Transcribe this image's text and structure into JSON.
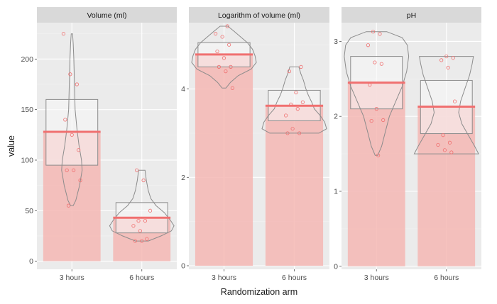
{
  "chart_data": {
    "type": "bar",
    "layout": "faceted-panels",
    "xlabel": "Randomization arm",
    "ylabel": "value",
    "categories": [
      "3 hours",
      "6 hours"
    ],
    "colors": {
      "panel_background": "#ebebeb",
      "strip_background": "#d9d9d9",
      "bar_fill": "#f4b7b4",
      "mean_line": "#f07070",
      "point": "#f07070",
      "outline": "#8c8c8c",
      "box_fill": "#f7f7f7"
    },
    "panels": [
      {
        "title": "Volume (ml)",
        "ylim": [
          -8,
          236
        ],
        "yticks": [
          0,
          50,
          100,
          150,
          200
        ],
        "groups": [
          {
            "category": "3 hours",
            "mean": 128,
            "box": [
              95,
              160
            ],
            "violin": [
              [
                55,
                0.02
              ],
              [
                60,
                0.06
              ],
              [
                75,
                0.12
              ],
              [
                90,
                0.16
              ],
              [
                100,
                0.15
              ],
              [
                115,
                0.11
              ],
              [
                130,
                0.08
              ],
              [
                150,
                0.05
              ],
              [
                175,
                0.04
              ],
              [
                200,
                0.03
              ],
              [
                215,
                0.02
              ],
              [
                225,
                0.01
              ]
            ],
            "points": [
              225,
              185,
              175,
              140,
              125,
              110,
              90,
              90,
              80,
              55
            ]
          },
          {
            "category": "6 hours",
            "mean": 43,
            "box": [
              28,
              58
            ],
            "violin": [
              [
                20,
                0.1
              ],
              [
                25,
                0.3
              ],
              [
                30,
                0.46
              ],
              [
                35,
                0.5
              ],
              [
                40,
                0.45
              ],
              [
                48,
                0.35
              ],
              [
                55,
                0.22
              ],
              [
                62,
                0.14
              ],
              [
                70,
                0.1
              ],
              [
                80,
                0.07
              ],
              [
                90,
                0.05
              ]
            ],
            "points": [
              90,
              80,
              50,
              40,
              40,
              35,
              30,
              22,
              20,
              20
            ]
          }
        ]
      },
      {
        "title": "Logarithm of volume (ml)",
        "ylim": [
          -0.08,
          5.5
        ],
        "yticks": [
          0,
          2,
          4
        ],
        "groups": [
          {
            "category": "3 hours",
            "mean": 4.78,
            "box": [
              4.5,
              5.05
            ],
            "violin": [
              [
                4.02,
                0.03
              ],
              [
                4.15,
                0.1
              ],
              [
                4.3,
                0.22
              ],
              [
                4.45,
                0.42
              ],
              [
                4.6,
                0.5
              ],
              [
                4.75,
                0.48
              ],
              [
                4.9,
                0.44
              ],
              [
                5.05,
                0.36
              ],
              [
                5.2,
                0.24
              ],
              [
                5.3,
                0.16
              ],
              [
                5.42,
                0.06
              ]
            ],
            "points": [
              5.42,
              5.25,
              5.18,
              5.0,
              4.85,
              4.7,
              4.5,
              4.5,
              4.4,
              4.02
            ]
          },
          {
            "category": "6 hours",
            "mean": 3.62,
            "box": [
              3.28,
              3.97
            ],
            "violin": [
              [
                3.0,
                0.38
              ],
              [
                3.1,
                0.5
              ],
              [
                3.25,
                0.47
              ],
              [
                3.4,
                0.4
              ],
              [
                3.55,
                0.31
              ],
              [
                3.7,
                0.27
              ],
              [
                3.85,
                0.22
              ],
              [
                4.0,
                0.18
              ],
              [
                4.2,
                0.14
              ],
              [
                4.35,
                0.1
              ],
              [
                4.5,
                0.07
              ]
            ],
            "points": [
              4.5,
              4.4,
              3.92,
              3.7,
              3.65,
              3.55,
              3.4,
              3.1,
              3.0,
              3.0
            ]
          }
        ]
      },
      {
        "title": "pH",
        "ylim": [
          -0.04,
          3.25
        ],
        "yticks": [
          0,
          1,
          2,
          3
        ],
        "groups": [
          {
            "category": "3 hours",
            "mean": 2.45,
            "box": [
              2.1,
              2.8
            ],
            "violin": [
              [
                1.48,
                0.02
              ],
              [
                1.6,
                0.08
              ],
              [
                1.8,
                0.14
              ],
              [
                2.0,
                0.2
              ],
              [
                2.2,
                0.3
              ],
              [
                2.4,
                0.4
              ],
              [
                2.6,
                0.47
              ],
              [
                2.8,
                0.5
              ],
              [
                2.95,
                0.48
              ],
              [
                3.05,
                0.4
              ],
              [
                3.13,
                0.16
              ]
            ],
            "points": [
              3.13,
              3.1,
              2.95,
              2.72,
              2.7,
              2.42,
              2.1,
              1.95,
              1.94,
              1.48
            ]
          },
          {
            "category": "6 hours",
            "mean": 2.13,
            "box": [
              1.77,
              2.48
            ],
            "violin": [
              [
                1.5,
                0.5
              ],
              [
                1.6,
                0.44
              ],
              [
                1.75,
                0.34
              ],
              [
                1.9,
                0.24
              ],
              [
                2.05,
                0.19
              ],
              [
                2.2,
                0.22
              ],
              [
                2.4,
                0.3
              ],
              [
                2.55,
                0.36
              ],
              [
                2.7,
                0.4
              ],
              [
                2.8,
                0.42
              ]
            ],
            "points": [
              2.8,
              2.78,
              2.75,
              2.65,
              2.2,
              1.75,
              1.65,
              1.62,
              1.55,
              1.52
            ]
          }
        ]
      }
    ]
  }
}
